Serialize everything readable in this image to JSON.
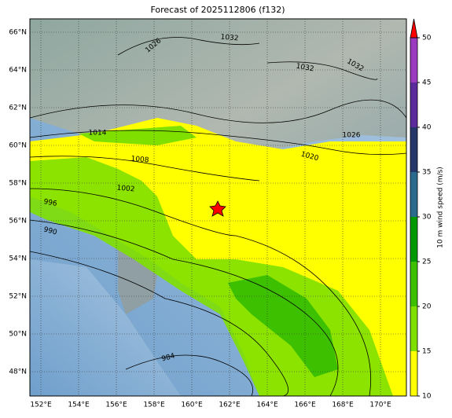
{
  "title": "Forecast of 2025112806 (f132)",
  "map": {
    "lon_ticks": [
      {
        "value": 152,
        "label": "152°E"
      },
      {
        "value": 154,
        "label": "154°E"
      },
      {
        "value": 156,
        "label": "156°E"
      },
      {
        "value": 158,
        "label": "158°E"
      },
      {
        "value": 160,
        "label": "160°E"
      },
      {
        "value": 162,
        "label": "162°E"
      },
      {
        "value": 164,
        "label": "164°E"
      },
      {
        "value": 166,
        "label": "166°E"
      },
      {
        "value": 168,
        "label": "168°E"
      },
      {
        "value": 170,
        "label": "170°E"
      }
    ],
    "lat_ticks": [
      {
        "value": 66,
        "label": "66°N"
      },
      {
        "value": 64,
        "label": "64°N"
      },
      {
        "value": 62,
        "label": "62°N"
      },
      {
        "value": 60,
        "label": "60°N"
      },
      {
        "value": 58,
        "label": "58°N"
      },
      {
        "value": 56,
        "label": "56°N"
      },
      {
        "value": 54,
        "label": "54°N"
      },
      {
        "value": 52,
        "label": "52°N"
      },
      {
        "value": 50,
        "label": "50°N"
      },
      {
        "value": 48,
        "label": "48°N"
      }
    ],
    "contour_labels": [
      1026,
      1032,
      1032,
      1032,
      1014,
      1026,
      1020,
      1008,
      1002,
      996,
      990,
      984
    ]
  },
  "colorbar": {
    "label": "10 m wind speed (m/s)",
    "ticks": [
      10,
      15,
      20,
      25,
      30,
      35,
      40,
      45,
      50
    ],
    "colors": [
      "#ffff00",
      "#7fe000",
      "#3cc000",
      "#009a00",
      "#2a6a8c",
      "#25376a",
      "#5b2a9c",
      "#9b3cc0"
    ],
    "over_color": "#ff0000"
  }
}
